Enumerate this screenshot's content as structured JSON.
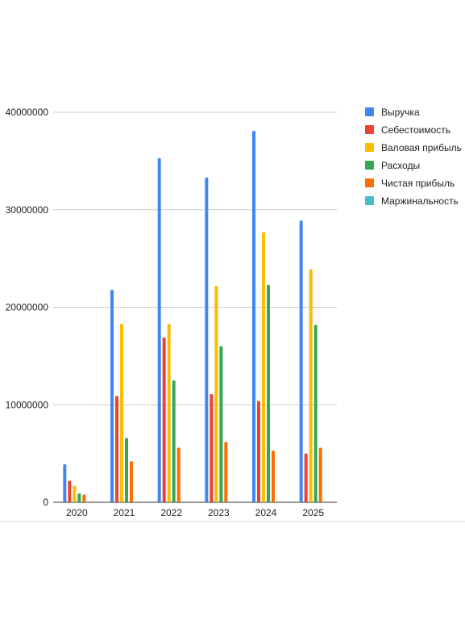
{
  "chart_data": {
    "type": "bar",
    "title": "",
    "xlabel": "",
    "ylabel": "",
    "categories": [
      "2020",
      "2021",
      "2022",
      "2023",
      "2024",
      "2025"
    ],
    "ylim": [
      0,
      40000000
    ],
    "yticks": [
      "0",
      "10000000",
      "20000000",
      "30000000",
      "40000000"
    ],
    "grid": true,
    "legend_position": "right",
    "series": [
      {
        "name": "Выручка",
        "color": "#4285f4",
        "values": [
          3900000,
          21800000,
          35300000,
          33300000,
          38100000,
          28900000
        ]
      },
      {
        "name": "Себестоимость",
        "color": "#ea4335",
        "values": [
          2200000,
          10900000,
          16900000,
          11100000,
          10400000,
          5000000
        ]
      },
      {
        "name": "Валовая прибыль",
        "color": "#fbbc04",
        "values": [
          1700000,
          18300000,
          18300000,
          22200000,
          27700000,
          23900000
        ]
      },
      {
        "name": "Расходы",
        "color": "#34a853",
        "values": [
          900000,
          6600000,
          12500000,
          16000000,
          22300000,
          18200000
        ]
      },
      {
        "name": "Чистая прибыль",
        "color": "#ff6d01",
        "values": [
          800000,
          4200000,
          5600000,
          6200000,
          5300000,
          5600000
        ]
      },
      {
        "name": "Маржинальность",
        "color": "#46bdc6",
        "values": [
          0,
          0,
          0,
          0,
          0,
          0
        ]
      }
    ]
  }
}
